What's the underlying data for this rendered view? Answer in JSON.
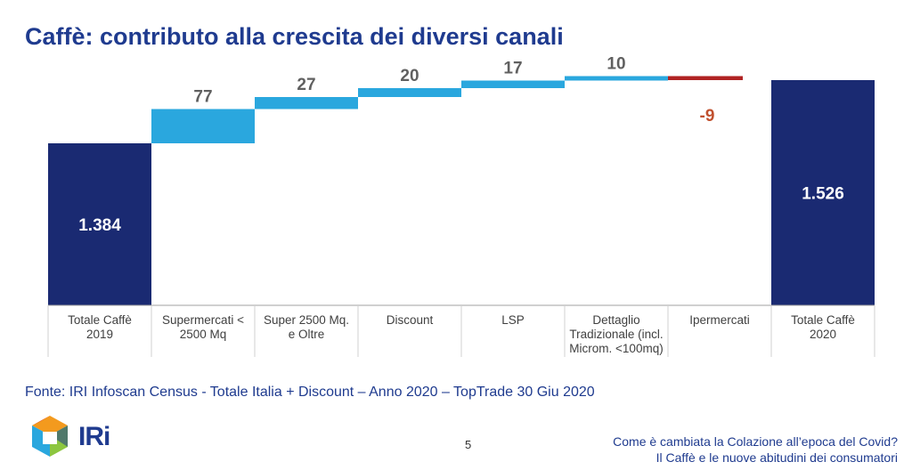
{
  "slide": {
    "title": "Caffè: contributo alla crescita dei diversi canali",
    "source": "Fonte: IRI Infoscan Census - Totale Italia + Discount – Anno 2020 – TopTrade 30 Giu 2020",
    "logo_text": "IRi",
    "page_number": "5",
    "footer_line1": "Come è cambiata la Colazione all’epoca del Covid?",
    "footer_line2": "Il Caffè e le nuove abitudini dei consumatori"
  },
  "colors": {
    "title": "#1f3b8f",
    "total_bar": "#1a2a72",
    "increase_bar": "#2aa7de",
    "decrease_bar": "#b02222",
    "positive_label": "#606060",
    "negative_label": "#c0502e"
  },
  "chart_data": {
    "type": "bar",
    "subtype": "waterfall",
    "title": "",
    "xlabel": "",
    "ylabel": "",
    "categories": [
      [
        "Totale Caffè",
        "2019"
      ],
      [
        "Supermercati <",
        "2500 Mq"
      ],
      [
        "Super 2500 Mq.",
        "e Oltre"
      ],
      [
        "Discount"
      ],
      [
        "LSP"
      ],
      [
        "Dettaglio",
        "Tradizionale (incl.",
        "Microm. <100mq)"
      ],
      [
        "Ipermercati"
      ],
      [
        "Totale Caffè",
        "2020"
      ]
    ],
    "values": [
      1384,
      77,
      27,
      20,
      17,
      10,
      -9,
      1526
    ],
    "labels": [
      "1.384",
      "77",
      "27",
      "20",
      "17",
      "10",
      "-9",
      "1.526"
    ],
    "kinds": [
      "total",
      "delta",
      "delta",
      "delta",
      "delta",
      "delta",
      "delta",
      "total"
    ],
    "axis_break": true,
    "grid": false,
    "legend": "none"
  }
}
